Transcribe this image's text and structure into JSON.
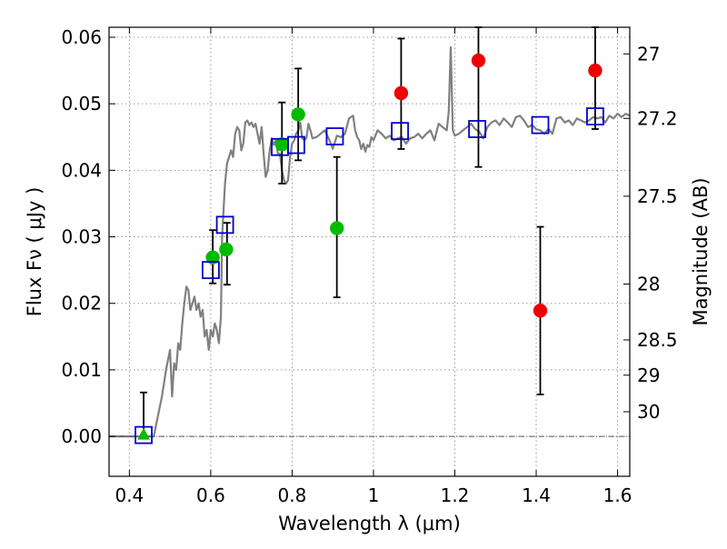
{
  "chart_data": {
    "type": "scatter",
    "xlabel": "Wavelength  λ (μm)",
    "ylabel": "Flux  Fν  ( μJy )",
    "ylabel_right": "Magnitude (AB)",
    "xlim": [
      0.35,
      1.63
    ],
    "ylim": [
      -0.006,
      0.0615
    ],
    "grid": true,
    "x_ticks": [
      0.4,
      0.6,
      0.8,
      1.0,
      1.2,
      1.4,
      1.6
    ],
    "x_tick_labels": [
      "0.4",
      "0.6",
      "0.8",
      "1",
      "1.2",
      "1.4",
      "1.6"
    ],
    "y_ticks": [
      0.0,
      0.01,
      0.02,
      0.03,
      0.04,
      0.05,
      0.06
    ],
    "y_tick_labels": [
      "0.00",
      "0.01",
      "0.02",
      "0.03",
      "0.04",
      "0.05",
      "0.06"
    ],
    "right_ticks": [
      {
        "label": "27",
        "flux": 0.0575
      },
      {
        "label": "27.2",
        "flux": 0.0478
      },
      {
        "label": "27.5",
        "flux": 0.0361
      },
      {
        "label": "28",
        "flux": 0.0229
      },
      {
        "label": "28.5",
        "flux": 0.0145
      },
      {
        "label": "29",
        "flux": 0.0092
      },
      {
        "label": "30",
        "flux": 0.0037
      }
    ],
    "colors": {
      "model": "#808080",
      "green": "#00bb00",
      "red": "#ee0000",
      "box": "#0000cc",
      "errorbar": "#000000",
      "grid": "#999999"
    },
    "series": [
      {
        "type": "line",
        "x": [
          0.35,
          0.46,
          0.48,
          0.49,
          0.5,
          0.505,
          0.51,
          0.515,
          0.52,
          0.525,
          0.53,
          0.535,
          0.54,
          0.545,
          0.55,
          0.555,
          0.56,
          0.565,
          0.57,
          0.575,
          0.58,
          0.585,
          0.59,
          0.595,
          0.6,
          0.605,
          0.61,
          0.615,
          0.62,
          0.625,
          0.628,
          0.635,
          0.64,
          0.645,
          0.65,
          0.655,
          0.66,
          0.665,
          0.67,
          0.675,
          0.68,
          0.685,
          0.69,
          0.695,
          0.7,
          0.705,
          0.71,
          0.715,
          0.72,
          0.725,
          0.73,
          0.735,
          0.74,
          0.745,
          0.75,
          0.755,
          0.76,
          0.765,
          0.77,
          0.775,
          0.78,
          0.785,
          0.79,
          0.795,
          0.8,
          0.805,
          0.81,
          0.815,
          0.82,
          0.825,
          0.83,
          0.835,
          0.84,
          0.845,
          0.85,
          0.86,
          0.87,
          0.88,
          0.89,
          0.9,
          0.91,
          0.92,
          0.93,
          0.94,
          0.95,
          0.955,
          0.96,
          0.965,
          0.97,
          0.975,
          0.98,
          0.985,
          0.99,
          0.995,
          1.0,
          1.01,
          1.02,
          1.03,
          1.04,
          1.05,
          1.06,
          1.07,
          1.08,
          1.09,
          1.1,
          1.11,
          1.12,
          1.13,
          1.14,
          1.15,
          1.16,
          1.17,
          1.18,
          1.185,
          1.19,
          1.195,
          1.2,
          1.21,
          1.22,
          1.23,
          1.24,
          1.25,
          1.26,
          1.27,
          1.28,
          1.29,
          1.3,
          1.31,
          1.32,
          1.33,
          1.34,
          1.35,
          1.36,
          1.37,
          1.38,
          1.39,
          1.4,
          1.41,
          1.42,
          1.43,
          1.44,
          1.45,
          1.46,
          1.47,
          1.48,
          1.49,
          1.5,
          1.51,
          1.52,
          1.53,
          1.54,
          1.55,
          1.56,
          1.57,
          1.58,
          1.59,
          1.6,
          1.61,
          1.62,
          1.63
        ],
        "y": [
          0.0,
          0.0,
          0.006,
          0.01,
          0.013,
          0.006,
          0.011,
          0.01,
          0.014,
          0.013,
          0.017,
          0.02,
          0.0225,
          0.022,
          0.019,
          0.02,
          0.021,
          0.019,
          0.02,
          0.018,
          0.019,
          0.015,
          0.016,
          0.013,
          0.016,
          0.015,
          0.017,
          0.016,
          0.014,
          0.018,
          0.03,
          0.038,
          0.041,
          0.042,
          0.043,
          0.042,
          0.0455,
          0.0465,
          0.046,
          0.043,
          0.044,
          0.0472,
          0.0475,
          0.0468,
          0.0472,
          0.0465,
          0.047,
          0.0455,
          0.044,
          0.0465,
          0.0425,
          0.039,
          0.04,
          0.043,
          0.0448,
          0.0438,
          0.0445,
          0.0425,
          0.0425,
          0.04,
          0.0385,
          0.038,
          0.0385,
          0.042,
          0.044,
          0.0445,
          0.0455,
          0.046,
          0.0472,
          0.0448,
          0.0445,
          0.0448,
          0.047,
          0.046,
          0.0448,
          0.045,
          0.0455,
          0.046,
          0.0448,
          0.0432,
          0.0452,
          0.045,
          0.0455,
          0.0478,
          0.0482,
          0.046,
          0.045,
          0.0445,
          0.0432,
          0.044,
          0.0428,
          0.0438,
          0.0435,
          0.045,
          0.0445,
          0.046,
          0.0455,
          0.0448,
          0.0452,
          0.0445,
          0.0448,
          0.045,
          0.044,
          0.0448,
          0.045,
          0.0455,
          0.0448,
          0.0455,
          0.046,
          0.0445,
          0.047,
          0.0465,
          0.046,
          0.0488,
          0.0585,
          0.046,
          0.0452,
          0.0455,
          0.046,
          0.0465,
          0.047,
          0.0462,
          0.0458,
          0.0448,
          0.0465,
          0.0472,
          0.0475,
          0.0468,
          0.0478,
          0.0472,
          0.0465,
          0.048,
          0.0482,
          0.0475,
          0.0465,
          0.0468,
          0.0462,
          0.046,
          0.0455,
          0.0462,
          0.0455,
          0.0478,
          0.048,
          0.0472,
          0.0475,
          0.0468,
          0.0478,
          0.0475,
          0.0472,
          0.0475,
          0.048,
          0.0478,
          0.048,
          0.0472,
          0.0482,
          0.0478,
          0.0485,
          0.048,
          0.0485,
          0.0482
        ]
      },
      {
        "type": "errorbars",
        "points": [
          {
            "x": 0.435,
            "low": 0.0,
            "high": 0.0066
          },
          {
            "x": 0.605,
            "low": 0.023,
            "high": 0.031
          },
          {
            "x": 0.64,
            "low": 0.0228,
            "high": 0.0321
          },
          {
            "x": 0.775,
            "low": 0.038,
            "high": 0.0502
          },
          {
            "x": 0.815,
            "low": 0.0415,
            "high": 0.0553
          },
          {
            "x": 0.91,
            "low": 0.0209,
            "high": 0.042
          },
          {
            "x": 1.068,
            "low": 0.0432,
            "high": 0.0598
          },
          {
            "x": 1.258,
            "low": 0.0405,
            "high": 0.0615
          },
          {
            "x": 1.41,
            "low": 0.0063,
            "high": 0.0315
          },
          {
            "x": 1.545,
            "low": 0.0462,
            "high": 0.0615
          }
        ]
      },
      {
        "type": "scatter",
        "marker": "circle",
        "color_key": "green",
        "x": [
          0.605,
          0.638,
          0.775,
          0.815,
          0.91
        ],
        "y": [
          0.0269,
          0.0281,
          0.0439,
          0.0484,
          0.0313
        ]
      },
      {
        "type": "scatter",
        "marker": "triangle",
        "color_key": "green",
        "x": [
          0.435
        ],
        "y": [
          0.0002
        ]
      },
      {
        "type": "scatter",
        "marker": "circle",
        "color_key": "red",
        "x": [
          1.068,
          1.258,
          1.41,
          1.545
        ],
        "y": [
          0.0516,
          0.0565,
          0.0189,
          0.055
        ]
      },
      {
        "type": "scatter",
        "marker": "open-square",
        "color_key": "box",
        "x": [
          0.435,
          0.6,
          0.635,
          0.77,
          0.81,
          0.905,
          1.065,
          1.255,
          1.41,
          1.545
        ],
        "y": [
          0.0002,
          0.025,
          0.0318,
          0.0435,
          0.0438,
          0.0451,
          0.0459,
          0.0462,
          0.0468,
          0.0481
        ]
      }
    ]
  }
}
